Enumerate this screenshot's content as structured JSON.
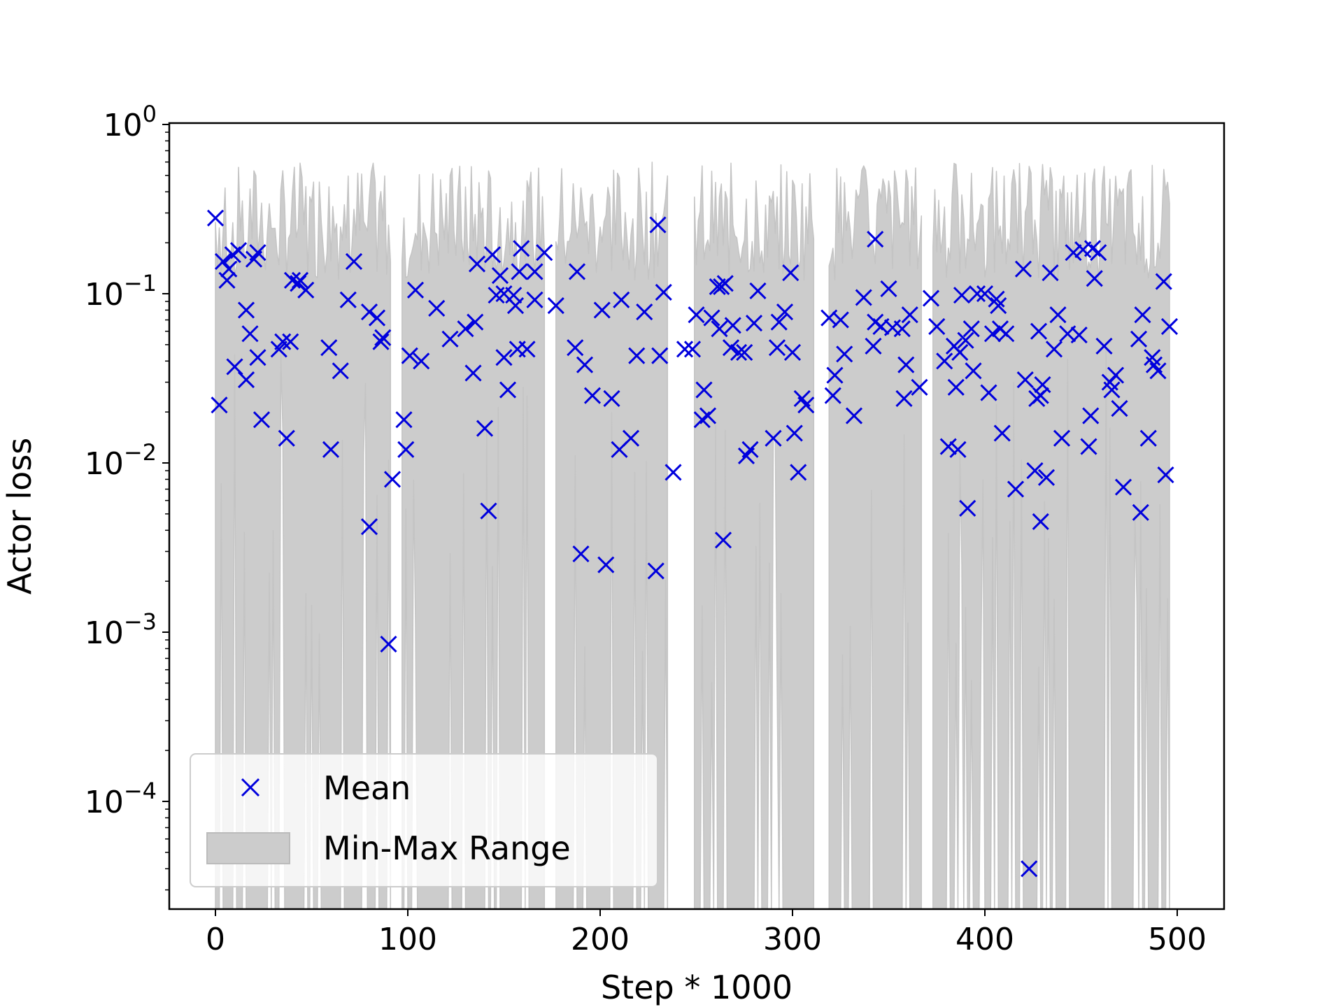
{
  "chart_data": {
    "type": "scatter",
    "title": "",
    "xlabel": "Step * 1000",
    "ylabel": "Actor loss",
    "xlim": [
      -25,
      520
    ],
    "ylim": [
      1e-05,
      1.0
    ],
    "yscale": "log",
    "grid": false,
    "legend_placement": "lower-left",
    "x_ticks": [
      0,
      100,
      200,
      300,
      400,
      500
    ],
    "x_tick_labels": [
      "0",
      "100",
      "200",
      "300",
      "400",
      "500"
    ],
    "y_ticks": [
      0.0001,
      0.001,
      0.01,
      0.1,
      1
    ],
    "y_tick_labels": [
      {
        "base": "10",
        "exp": "−4"
      },
      {
        "base": "10",
        "exp": "−3"
      },
      {
        "base": "10",
        "exp": "−2"
      },
      {
        "base": "10",
        "exp": "−1"
      },
      {
        "base": "10",
        "exp": "0"
      }
    ],
    "series": [
      {
        "name": "Mean",
        "kind": "scatter",
        "marker": "x",
        "color": "#0000dd",
        "points": [
          [
            0,
            0.28
          ],
          [
            2,
            0.022
          ],
          [
            4,
            0.155
          ],
          [
            6,
            0.12
          ],
          [
            7,
            0.14
          ],
          [
            9,
            0.17
          ],
          [
            10,
            0.037
          ],
          [
            12,
            0.18
          ],
          [
            16,
            0.08
          ],
          [
            16,
            0.031
          ],
          [
            18,
            0.058
          ],
          [
            20,
            0.16
          ],
          [
            22,
            0.175
          ],
          [
            22,
            0.042
          ],
          [
            24,
            0.018
          ],
          [
            33,
            0.047
          ],
          [
            35,
            0.052
          ],
          [
            37,
            0.014
          ],
          [
            39,
            0.052
          ],
          [
            40,
            0.12
          ],
          [
            43,
            0.115
          ],
          [
            44,
            0.12
          ],
          [
            47,
            0.105
          ],
          [
            59,
            0.048
          ],
          [
            60,
            0.012
          ],
          [
            65,
            0.035
          ],
          [
            69,
            0.092
          ],
          [
            72,
            0.155
          ],
          [
            80,
            0.078
          ],
          [
            80,
            0.0042
          ],
          [
            84,
            0.072
          ],
          [
            86,
            0.052
          ],
          [
            87,
            0.055
          ],
          [
            90,
            0.00085
          ],
          [
            92,
            0.008
          ],
          [
            98,
            0.018
          ],
          [
            99,
            0.012
          ],
          [
            101,
            0.043
          ],
          [
            104,
            0.105
          ],
          [
            107,
            0.04
          ],
          [
            115,
            0.082
          ],
          [
            122,
            0.054
          ],
          [
            130,
            0.062
          ],
          [
            134,
            0.034
          ],
          [
            135,
            0.068
          ],
          [
            136,
            0.15
          ],
          [
            140,
            0.016
          ],
          [
            142,
            0.0052
          ],
          [
            144,
            0.17
          ],
          [
            146,
            0.098
          ],
          [
            148,
            0.128
          ],
          [
            150,
            0.042
          ],
          [
            150,
            0.1
          ],
          [
            152,
            0.027
          ],
          [
            155,
            0.098
          ],
          [
            156,
            0.085
          ],
          [
            157,
            0.047
          ],
          [
            158,
            0.135
          ],
          [
            159,
            0.185
          ],
          [
            162,
            0.047
          ],
          [
            166,
            0.135
          ],
          [
            166,
            0.092
          ],
          [
            171,
            0.175
          ],
          [
            177,
            0.085
          ],
          [
            187,
            0.048
          ],
          [
            188,
            0.135
          ],
          [
            190,
            0.0029
          ],
          [
            192,
            0.038
          ],
          [
            196,
            0.025
          ],
          [
            201,
            0.08
          ],
          [
            203,
            0.0025
          ],
          [
            206,
            0.024
          ],
          [
            210,
            0.012
          ],
          [
            211,
            0.092
          ],
          [
            216,
            0.014
          ],
          [
            219,
            0.043
          ],
          [
            223,
            0.078
          ],
          [
            229,
            0.0023
          ],
          [
            230,
            0.255
          ],
          [
            231,
            0.043
          ],
          [
            233,
            0.102
          ],
          [
            238,
            0.0088
          ],
          [
            244,
            0.047
          ],
          [
            248,
            0.047
          ],
          [
            250,
            0.075
          ],
          [
            253,
            0.018
          ],
          [
            254,
            0.027
          ],
          [
            256,
            0.019
          ],
          [
            258,
            0.072
          ],
          [
            261,
            0.11
          ],
          [
            262,
            0.062
          ],
          [
            263,
            0.11
          ],
          [
            264,
            0.0035
          ],
          [
            265,
            0.115
          ],
          [
            268,
            0.048
          ],
          [
            269,
            0.065
          ],
          [
            272,
            0.045
          ],
          [
            275,
            0.045
          ],
          [
            276,
            0.011
          ],
          [
            278,
            0.012
          ],
          [
            280,
            0.067
          ],
          [
            282,
            0.104
          ],
          [
            290,
            0.014
          ],
          [
            292,
            0.048
          ],
          [
            293,
            0.068
          ],
          [
            296,
            0.078
          ],
          [
            299,
            0.133
          ],
          [
            300,
            0.045
          ],
          [
            301,
            0.015
          ],
          [
            303,
            0.0088
          ],
          [
            305,
            0.024
          ],
          [
            307,
            0.022
          ],
          [
            319,
            0.072
          ],
          [
            321,
            0.025
          ],
          [
            322,
            0.033
          ],
          [
            325,
            0.07
          ],
          [
            327,
            0.044
          ],
          [
            332,
            0.019
          ],
          [
            337,
            0.095
          ],
          [
            342,
            0.049
          ],
          [
            343,
            0.068
          ],
          [
            343,
            0.21
          ],
          [
            346,
            0.064
          ],
          [
            350,
            0.107
          ],
          [
            352,
            0.063
          ],
          [
            357,
            0.062
          ],
          [
            358,
            0.024
          ],
          [
            359,
            0.038
          ],
          [
            361,
            0.075
          ],
          [
            366,
            0.028
          ],
          [
            372,
            0.094
          ],
          [
            375,
            0.064
          ],
          [
            379,
            0.04
          ],
          [
            381,
            0.0125
          ],
          [
            384,
            0.049
          ],
          [
            385,
            0.028
          ],
          [
            386,
            0.012
          ],
          [
            387,
            0.045
          ],
          [
            388,
            0.098
          ],
          [
            390,
            0.053
          ],
          [
            391,
            0.0054
          ],
          [
            393,
            0.062
          ],
          [
            394,
            0.035
          ],
          [
            396,
            0.1
          ],
          [
            400,
            0.1
          ],
          [
            402,
            0.026
          ],
          [
            404,
            0.058
          ],
          [
            406,
            0.093
          ],
          [
            407,
            0.085
          ],
          [
            408,
            0.062
          ],
          [
            409,
            0.015
          ],
          [
            411,
            0.058
          ],
          [
            416,
            0.007
          ],
          [
            420,
            0.14
          ],
          [
            421,
            0.031
          ],
          [
            423,
            4e-05
          ],
          [
            426,
            0.009
          ],
          [
            427,
            0.024
          ],
          [
            428,
            0.06
          ],
          [
            429,
            0.0045
          ],
          [
            429,
            0.025
          ],
          [
            430,
            0.029
          ],
          [
            432,
            0.0082
          ],
          [
            434,
            0.133
          ],
          [
            436,
            0.047
          ],
          [
            438,
            0.075
          ],
          [
            440,
            0.014
          ],
          [
            443,
            0.058
          ],
          [
            446,
            0.175
          ],
          [
            449,
            0.057
          ],
          [
            451,
            0.182
          ],
          [
            454,
            0.0125
          ],
          [
            455,
            0.019
          ],
          [
            456,
            0.185
          ],
          [
            457,
            0.123
          ],
          [
            459,
            0.175
          ],
          [
            462,
            0.049
          ],
          [
            465,
            0.03
          ],
          [
            466,
            0.027
          ],
          [
            468,
            0.033
          ],
          [
            470,
            0.021
          ],
          [
            472,
            0.0072
          ],
          [
            480,
            0.054
          ],
          [
            481,
            0.0051
          ],
          [
            482,
            0.075
          ],
          [
            485,
            0.014
          ],
          [
            487,
            0.042
          ],
          [
            488,
            0.038
          ],
          [
            490,
            0.035
          ],
          [
            493,
            0.118
          ],
          [
            494,
            0.0085
          ],
          [
            496,
            0.064
          ]
        ]
      },
      {
        "name": "Min-Max Range",
        "kind": "area",
        "color": "#cccccc",
        "gaps": [
          [
            92,
            96
          ],
          [
            172,
            176
          ],
          [
            236,
            248
          ],
          [
            312,
            318
          ],
          [
            368,
            372
          ]
        ],
        "upper_min": 0.12,
        "upper_max": 0.6,
        "lower_min": 0.0005,
        "lower_max": 0.05
      }
    ]
  }
}
